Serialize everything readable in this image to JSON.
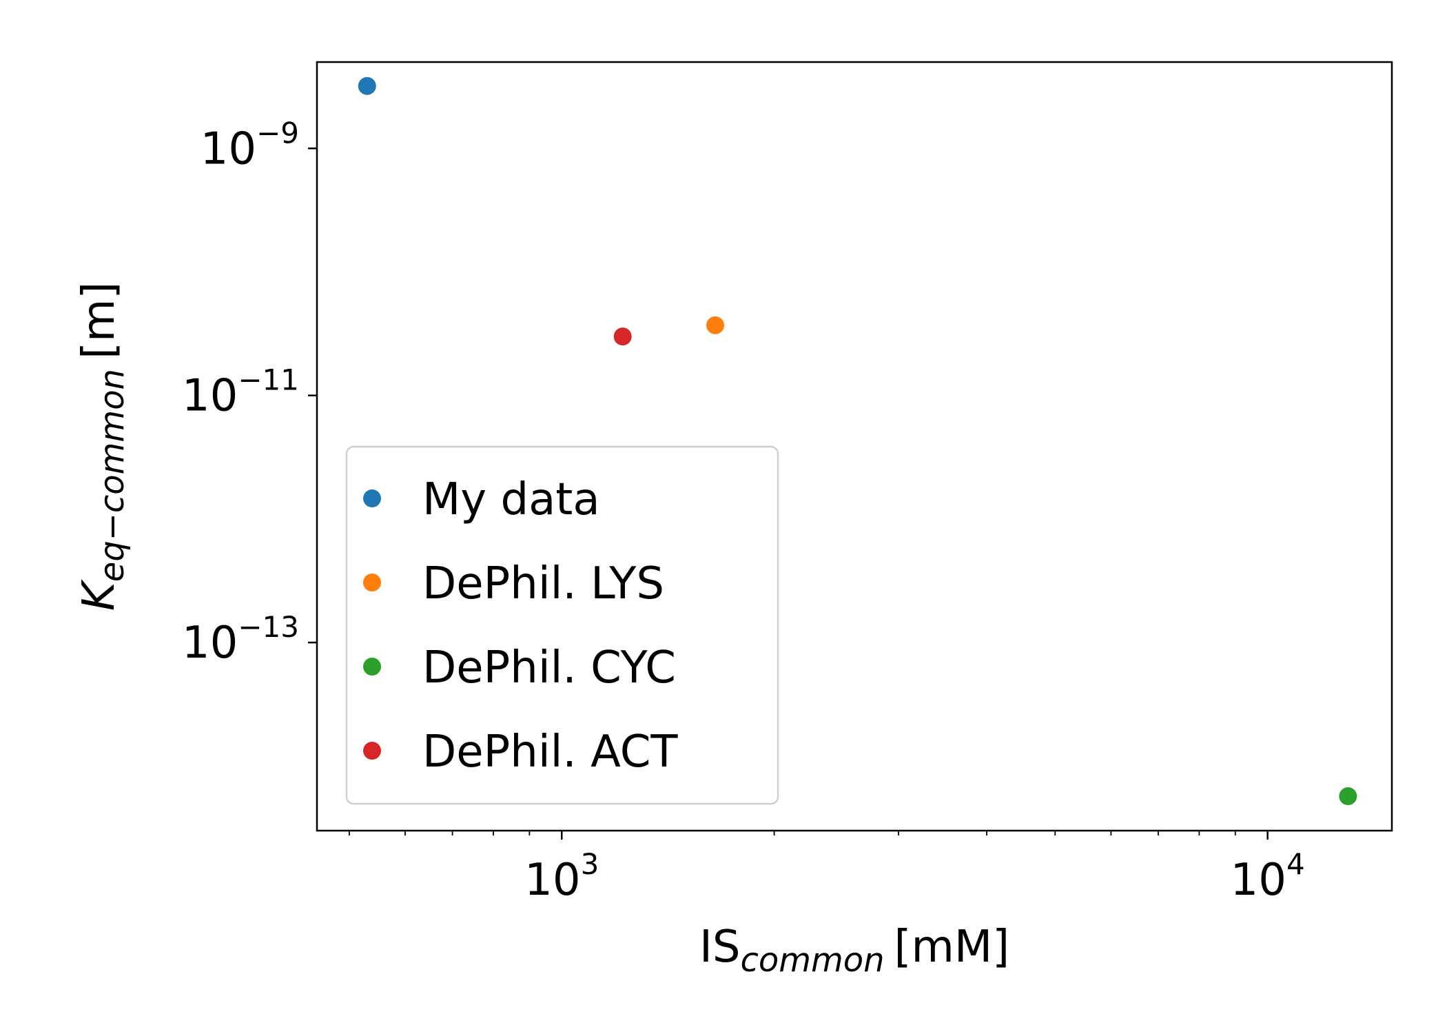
{
  "chart_data": {
    "type": "scatter",
    "title": "",
    "xlabel": {
      "main": "IS",
      "sub": "common",
      "unit": "[mM]"
    },
    "ylabel": {
      "main": "K",
      "sub": "eq−common",
      "unit": "[m]"
    },
    "xscale": "log",
    "yscale": "log",
    "xlim": [
      450,
      15000
    ],
    "ylim": [
      3e-15,
      5e-09
    ],
    "x_ticks": [
      {
        "value": 1000,
        "base": "10",
        "exp": "3"
      },
      {
        "value": 10000,
        "base": "10",
        "exp": "4"
      }
    ],
    "y_ticks": [
      {
        "value": 1e-09,
        "base": "10",
        "exp": "−9"
      },
      {
        "value": 1e-11,
        "base": "10",
        "exp": "−11"
      },
      {
        "value": 1e-13,
        "base": "10",
        "exp": "−13"
      }
    ],
    "grid": false,
    "legend_position": "lower-left",
    "series": [
      {
        "name": "My data",
        "color": "#1f77b4",
        "x": [
          530
        ],
        "y": [
          3.2e-09
        ]
      },
      {
        "name": "DePhil. LYS",
        "color": "#ff7f0e",
        "x": [
          1650
        ],
        "y": [
          3.7e-11
        ]
      },
      {
        "name": "DePhil. CYC",
        "color": "#2ca02c",
        "x": [
          13000
        ],
        "y": [
          5.7e-15
        ]
      },
      {
        "name": "DePhil. ACT",
        "color": "#d62728",
        "x": [
          1220
        ],
        "y": [
          3e-11
        ]
      }
    ]
  }
}
